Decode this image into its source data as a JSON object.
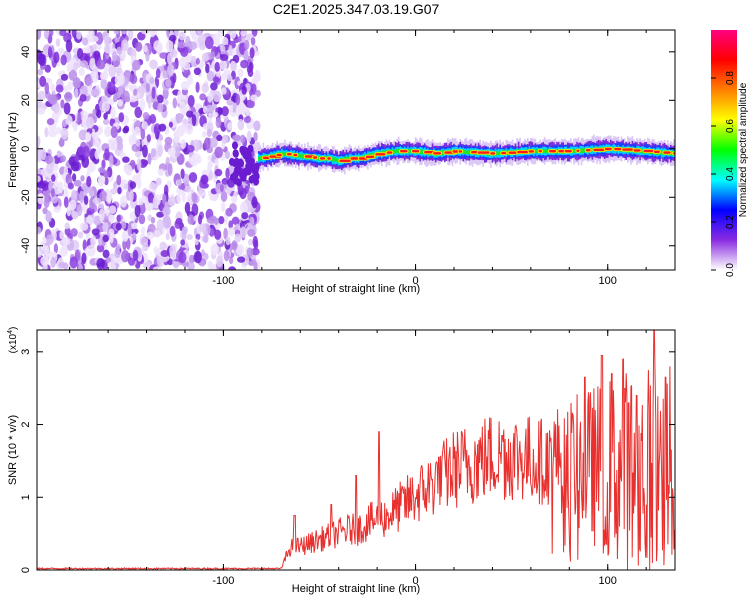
{
  "chart_data": [
    {
      "type": "heatmap",
      "title": "C2E1.2025.347.03.19.G07",
      "xlabel": "Height of straight line (km)",
      "ylabel": "Frequency (Hz)",
      "xlim": [
        -197,
        135
      ],
      "ylim": [
        -50,
        49
      ],
      "xticks": [
        -100,
        0,
        100
      ],
      "xtick_labels": [
        "-100",
        "0",
        "100"
      ],
      "yticks": [
        40,
        20,
        0,
        -20,
        -40
      ],
      "ytick_labels": [
        "40",
        "20",
        "0",
        "-20",
        "-40"
      ],
      "noise_region_x": [
        -197,
        -82
      ],
      "signal_track": {
        "x": [
          -82,
          -75,
          -70,
          -60,
          -50,
          -45,
          -40,
          -35,
          -30,
          -25,
          -20,
          -10,
          0,
          10,
          20,
          40,
          60,
          80,
          100,
          120,
          135
        ],
        "frequency": [
          -4,
          -3,
          -2,
          -3,
          -4,
          -4,
          -5,
          -4,
          -4,
          -3,
          -2,
          -1,
          -1,
          -2,
          -1,
          -2,
          -1,
          -1,
          0,
          -1,
          -2
        ]
      },
      "colorbar": {
        "label": "Normalized spectral amplitude",
        "range": [
          0,
          1
        ],
        "ticks": [
          0.0,
          0.2,
          0.4,
          0.6,
          0.8
        ],
        "tick_labels": [
          "0.0",
          "0.2",
          "0.4",
          "0.6",
          "0.8"
        ],
        "colors": [
          "#ffffff",
          "#8a2be2",
          "#0000ff",
          "#00ffff",
          "#00ff00",
          "#ffff00",
          "#ff8000",
          "#ff0000",
          "#ff0080"
        ]
      }
    },
    {
      "type": "line",
      "xlabel": "Height of straight line (km)",
      "ylabel": "SNR (10 * v/v)",
      "scale_label_base": "(x10",
      "scale_label_exp": "4",
      "scale_label_end": ")",
      "xlim": [
        -197,
        135
      ],
      "ylim": [
        0,
        3.3
      ],
      "xticks": [
        -100,
        0,
        100
      ],
      "xtick_labels": [
        "-100",
        "0",
        "100"
      ],
      "yticks": [
        0,
        1,
        2,
        3
      ],
      "ytick_labels": [
        "0",
        "1",
        "2",
        "3"
      ],
      "line_color": "#e8302e",
      "envelope": {
        "x": [
          -197,
          -70,
          -65,
          -60,
          -55,
          -50,
          -45,
          -40,
          -35,
          -30,
          -25,
          -20,
          -15,
          -10,
          -5,
          0,
          10,
          20,
          30,
          40,
          50,
          60,
          70,
          80,
          90,
          100,
          110,
          120,
          130,
          135
        ],
        "value": [
          0.01,
          0.02,
          0.35,
          0.35,
          0.4,
          0.45,
          0.5,
          0.55,
          0.6,
          0.6,
          0.7,
          0.75,
          0.8,
          0.9,
          1.0,
          1.1,
          1.3,
          1.5,
          1.6,
          1.7,
          1.7,
          1.65,
          1.6,
          1.5,
          1.45,
          1.4,
          1.35,
          1.35,
          1.35,
          1.35
        ]
      },
      "spikes": [
        {
          "x": -63,
          "value": 0.75
        },
        {
          "x": -44,
          "value": 0.9
        },
        {
          "x": -31,
          "value": 1.3
        },
        {
          "x": -19,
          "value": 1.9
        },
        {
          "x": 12,
          "value": 1.55
        },
        {
          "x": 45,
          "value": 1.85
        },
        {
          "x": 88,
          "value": 2.65
        },
        {
          "x": 97,
          "value": 2.95
        },
        {
          "x": 102,
          "value": 2.7
        },
        {
          "x": 108,
          "value": 2.9
        },
        {
          "x": 115,
          "value": 2.4
        },
        {
          "x": 124,
          "value": 3.3
        },
        {
          "x": 130,
          "value": 2.65
        }
      ]
    }
  ]
}
